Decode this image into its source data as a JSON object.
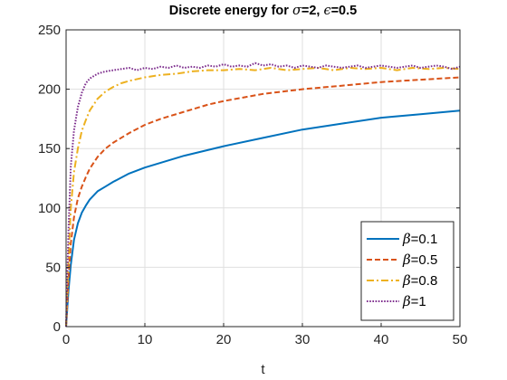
{
  "chart_data": {
    "type": "line",
    "title": {
      "prefix": "Discrete energy for ",
      "sym1": "σ",
      "mid": "=2, ",
      "sym2": "ϵ",
      "suffix": "=0.5"
    },
    "xlabel": "t",
    "ylabel": "",
    "xlim": [
      0,
      50
    ],
    "ylim": [
      0,
      250
    ],
    "xticks": [
      0,
      10,
      20,
      30,
      40,
      50
    ],
    "yticks": [
      0,
      50,
      100,
      150,
      200,
      250
    ],
    "grid": true,
    "legend_position": "bottom-right",
    "legend_symbol": "β",
    "series": [
      {
        "name": "=0.1",
        "color": "#0072BD",
        "style": "solid",
        "x": [
          0,
          0.3,
          0.6,
          1,
          1.5,
          2,
          2.5,
          3,
          4,
          5,
          6,
          8,
          10,
          12,
          15,
          20,
          25,
          30,
          35,
          40,
          45,
          50
        ],
        "y": [
          0,
          30,
          52,
          73,
          87,
          96,
          102,
          107,
          114,
          118,
          122,
          129,
          134,
          138,
          144,
          152,
          159,
          166,
          171,
          176,
          179,
          182
        ]
      },
      {
        "name": "=0.5",
        "color": "#D95319",
        "style": "dashed",
        "x": [
          0,
          0.3,
          0.6,
          1,
          1.5,
          2,
          2.5,
          3,
          4,
          5,
          6,
          8,
          10,
          12,
          15,
          18,
          20,
          25,
          30,
          35,
          40,
          45,
          50
        ],
        "y": [
          0,
          40,
          70,
          92,
          108,
          118,
          126,
          133,
          143,
          150,
          155,
          163,
          170,
          175,
          181,
          187,
          190,
          196,
          200,
          203,
          206,
          208,
          210
        ]
      },
      {
        "name": "=0.8",
        "color": "#EDB120",
        "style": "dashdot",
        "x": [
          0,
          0.3,
          0.6,
          1,
          1.5,
          2,
          2.5,
          3,
          4,
          5,
          6,
          7,
          8,
          10,
          12,
          14,
          16,
          18,
          20,
          22,
          24,
          26,
          28,
          30,
          32,
          34,
          36,
          38,
          40,
          42,
          44,
          46,
          48,
          50
        ],
        "y": [
          0,
          55,
          100,
          130,
          150,
          165,
          174,
          182,
          192,
          198,
          202,
          205,
          207,
          210,
          212,
          213,
          215,
          216,
          216,
          217,
          216,
          218,
          216,
          217,
          218,
          216,
          218,
          217,
          218,
          216,
          218,
          217,
          218,
          217
        ]
      },
      {
        "name": "=1",
        "color": "#7E2F8E",
        "style": "dotted",
        "x": [
          0,
          0.3,
          0.6,
          1,
          1.5,
          2,
          2.5,
          3,
          4,
          5,
          6,
          7,
          8,
          9,
          10,
          11,
          12,
          13,
          14,
          15,
          16,
          17,
          18,
          19,
          20,
          21,
          22,
          23,
          24,
          25,
          26,
          27,
          28,
          29,
          30,
          31,
          32,
          33,
          34,
          35,
          36,
          37,
          38,
          39,
          40,
          41,
          42,
          43,
          44,
          45,
          46,
          47,
          48,
          49,
          50
        ],
        "y": [
          0,
          80,
          135,
          165,
          185,
          197,
          205,
          209,
          213,
          215,
          216,
          217,
          218,
          216,
          218,
          217,
          219,
          218,
          220,
          218,
          219,
          218,
          220,
          219,
          221,
          219,
          220,
          219,
          222,
          220,
          221,
          219,
          220,
          218,
          220,
          219,
          218,
          220,
          219,
          218,
          219,
          220,
          218,
          219,
          220,
          219,
          218,
          219,
          220,
          218,
          219,
          220,
          219,
          217,
          219
        ]
      }
    ]
  }
}
